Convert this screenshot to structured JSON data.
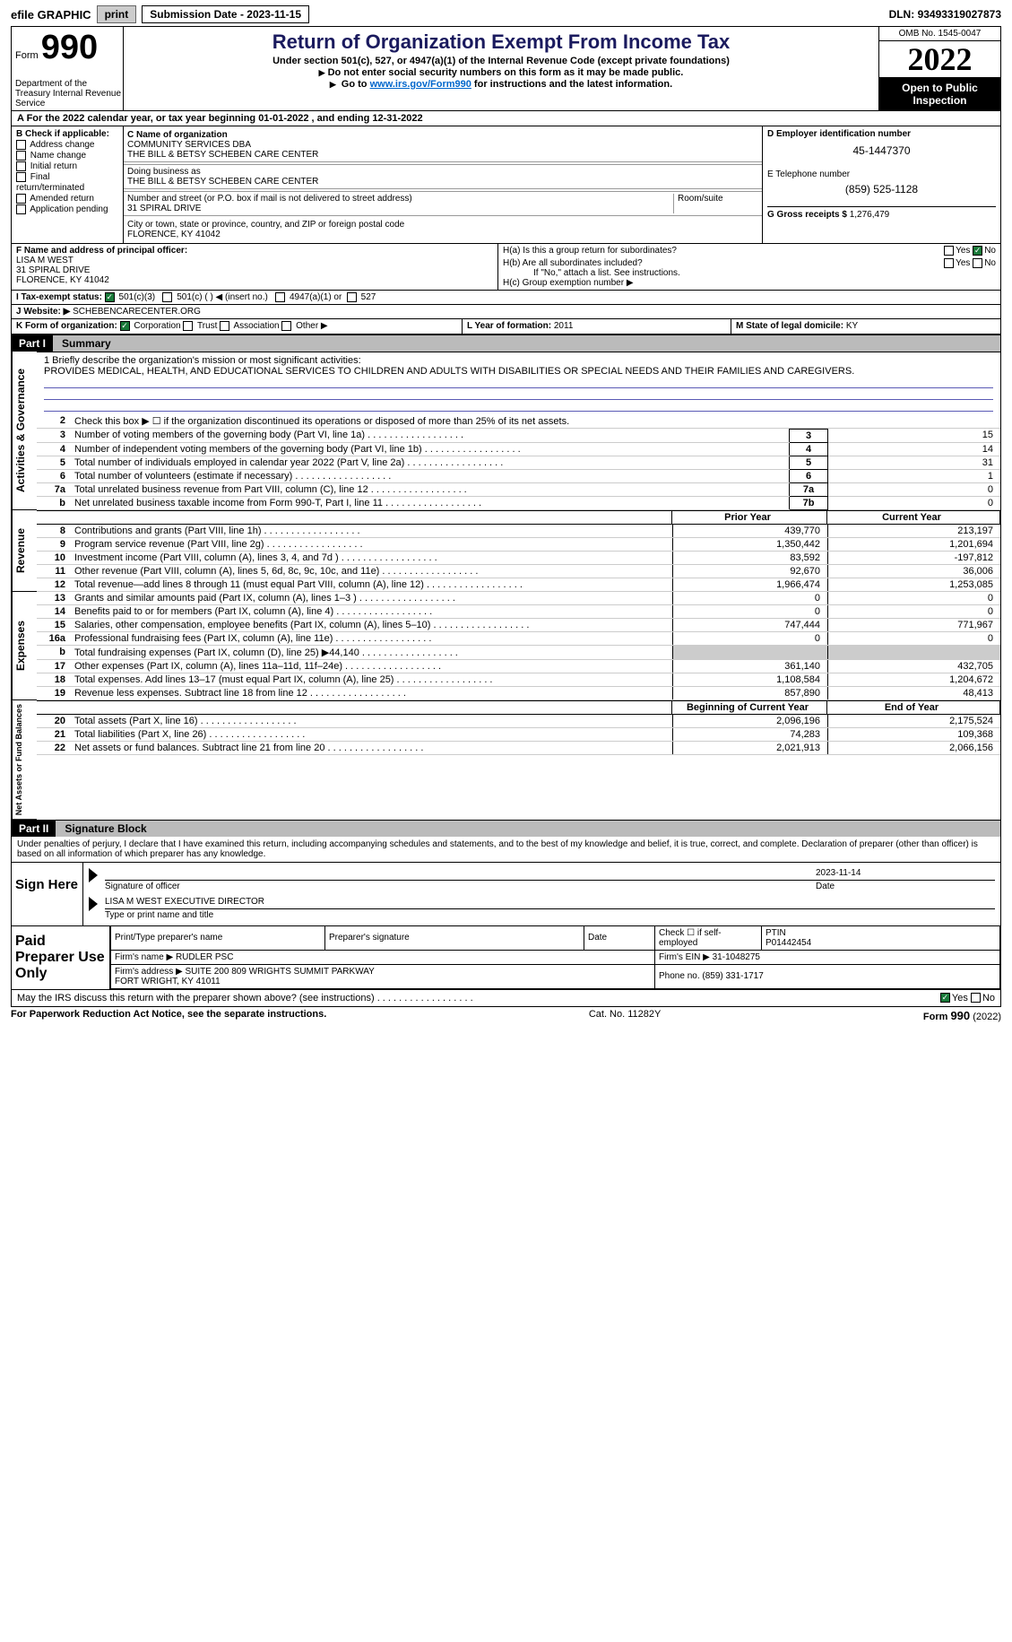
{
  "topbar": {
    "efile": "efile GRAPHIC",
    "print": "print",
    "subdate_label": "Submission Date - ",
    "subdate": "2023-11-15",
    "dln_label": "DLN: ",
    "dln": "93493319027873"
  },
  "header": {
    "form_word": "Form",
    "form_no": "990",
    "dept": "Department of the Treasury Internal Revenue Service",
    "title": "Return of Organization Exempt From Income Tax",
    "sub1": "Under section 501(c), 527, or 4947(a)(1) of the Internal Revenue Code (except private foundations)",
    "sub2": "Do not enter social security numbers on this form as it may be made public.",
    "sub3_a": "Go to ",
    "sub3_link": "www.irs.gov/Form990",
    "sub3_b": " for instructions and the latest information.",
    "omb": "OMB No. 1545-0047",
    "year": "2022",
    "open": "Open to Public Inspection"
  },
  "rowA": {
    "text": "A For the 2022 calendar year, or tax year beginning 01-01-2022    , and ending 12-31-2022"
  },
  "colB": {
    "title": "B Check if applicable:",
    "items": [
      "Address change",
      "Name change",
      "Initial return",
      "Final return/terminated",
      "Amended return",
      "Application pending"
    ]
  },
  "colC": {
    "name_label": "C Name of organization",
    "name1": "COMMUNITY SERVICES DBA",
    "name2": "THE BILL & BETSY SCHEBEN CARE CENTER",
    "dba_label": "Doing business as",
    "dba": "THE BILL & BETSY SCHEBEN CARE CENTER",
    "street_label": "Number and street (or P.O. box if mail is not delivered to street address)",
    "room_label": "Room/suite",
    "street": "31 SPIRAL DRIVE",
    "city_label": "City or town, state or province, country, and ZIP or foreign postal code",
    "city": "FLORENCE, KY  41042"
  },
  "colD": {
    "ein_label": "D Employer identification number",
    "ein": "45-1447370",
    "tel_label": "E Telephone number",
    "tel": "(859) 525-1128",
    "gross_label": "G Gross receipts $ ",
    "gross": "1,276,479"
  },
  "rowF": {
    "label": "F Name and address of principal officer:",
    "name": "LISA M WEST",
    "addr1": "31 SPIRAL DRIVE",
    "addr2": "FLORENCE, KY  41042"
  },
  "rowH": {
    "ha": "H(a)  Is this a group return for subordinates?",
    "hb": "H(b)  Are all subordinates included?",
    "hb_note": "If \"No,\" attach a list. See instructions.",
    "hc": "H(c)  Group exemption number ▶"
  },
  "rowI": {
    "label": "I  Tax-exempt status:",
    "opt1": "501(c)(3)",
    "opt2": "501(c) (  ) ◀ (insert no.)",
    "opt3": "4947(a)(1) or",
    "opt4": "527"
  },
  "rowJ": {
    "label": "J  Website: ▶",
    "value": "SCHEBENCARECENTER.ORG"
  },
  "rowK": {
    "label": "K Form of organization:",
    "opts": [
      "Corporation",
      "Trust",
      "Association",
      "Other ▶"
    ],
    "l_label": "L Year of formation: ",
    "l_val": "2011",
    "m_label": "M State of legal domicile: ",
    "m_val": "KY"
  },
  "partI": {
    "header": "Part I",
    "name": "Summary",
    "briefly_label": "1  Briefly describe the organization's mission or most significant activities:",
    "briefly": "PROVIDES MEDICAL, HEALTH, AND EDUCATIONAL SERVICES TO CHILDREN AND ADULTS WITH DISABILITIES OR SPECIAL NEEDS AND THEIR FAMILIES AND CAREGIVERS.",
    "line2": "Check this box ▶ ☐  if the organization discontinued its operations or disposed of more than 25% of its net assets.",
    "lines_ag": [
      {
        "n": "3",
        "t": "Number of voting members of the governing body (Part VI, line 1a)",
        "box": "3",
        "v": "15"
      },
      {
        "n": "4",
        "t": "Number of independent voting members of the governing body (Part VI, line 1b)",
        "box": "4",
        "v": "14"
      },
      {
        "n": "5",
        "t": "Total number of individuals employed in calendar year 2022 (Part V, line 2a)",
        "box": "5",
        "v": "31"
      },
      {
        "n": "6",
        "t": "Total number of volunteers (estimate if necessary)",
        "box": "6",
        "v": "1"
      },
      {
        "n": "7a",
        "t": "Total unrelated business revenue from Part VIII, column (C), line 12",
        "box": "7a",
        "v": "0"
      },
      {
        "n": "b",
        "t": "Net unrelated business taxable income from Form 990-T, Part I, line 11",
        "box": "7b",
        "v": "0"
      }
    ],
    "col_headers": {
      "prior": "Prior Year",
      "current": "Current Year"
    },
    "revenue": [
      {
        "n": "8",
        "t": "Contributions and grants (Part VIII, line 1h)",
        "p": "439,770",
        "c": "213,197"
      },
      {
        "n": "9",
        "t": "Program service revenue (Part VIII, line 2g)",
        "p": "1,350,442",
        "c": "1,201,694"
      },
      {
        "n": "10",
        "t": "Investment income (Part VIII, column (A), lines 3, 4, and 7d )",
        "p": "83,592",
        "c": "-197,812"
      },
      {
        "n": "11",
        "t": "Other revenue (Part VIII, column (A), lines 5, 6d, 8c, 9c, 10c, and 11e)",
        "p": "92,670",
        "c": "36,006"
      },
      {
        "n": "12",
        "t": "Total revenue—add lines 8 through 11 (must equal Part VIII, column (A), line 12)",
        "p": "1,966,474",
        "c": "1,253,085"
      }
    ],
    "expenses": [
      {
        "n": "13",
        "t": "Grants and similar amounts paid (Part IX, column (A), lines 1–3 )",
        "p": "0",
        "c": "0"
      },
      {
        "n": "14",
        "t": "Benefits paid to or for members (Part IX, column (A), line 4)",
        "p": "0",
        "c": "0"
      },
      {
        "n": "15",
        "t": "Salaries, other compensation, employee benefits (Part IX, column (A), lines 5–10)",
        "p": "747,444",
        "c": "771,967"
      },
      {
        "n": "16a",
        "t": "Professional fundraising fees (Part IX, column (A), line 11e)",
        "p": "0",
        "c": "0"
      },
      {
        "n": "b",
        "t": "Total fundraising expenses (Part IX, column (D), line 25) ▶44,140",
        "p": "",
        "c": "",
        "gray": true
      },
      {
        "n": "17",
        "t": "Other expenses (Part IX, column (A), lines 11a–11d, 11f–24e)",
        "p": "361,140",
        "c": "432,705"
      },
      {
        "n": "18",
        "t": "Total expenses. Add lines 13–17 (must equal Part IX, column (A), line 25)",
        "p": "1,108,584",
        "c": "1,204,672"
      },
      {
        "n": "19",
        "t": "Revenue less expenses. Subtract line 18 from line 12",
        "p": "857,890",
        "c": "48,413"
      }
    ],
    "net_headers": {
      "begin": "Beginning of Current Year",
      "end": "End of Year"
    },
    "net": [
      {
        "n": "20",
        "t": "Total assets (Part X, line 16)",
        "p": "2,096,196",
        "c": "2,175,524"
      },
      {
        "n": "21",
        "t": "Total liabilities (Part X, line 26)",
        "p": "74,283",
        "c": "109,368"
      },
      {
        "n": "22",
        "t": "Net assets or fund balances. Subtract line 21 from line 20",
        "p": "2,021,913",
        "c": "2,066,156"
      }
    ],
    "sides": {
      "ag": "Activities & Governance",
      "rev": "Revenue",
      "exp": "Expenses",
      "net": "Net Assets or Fund Balances"
    }
  },
  "partII": {
    "header": "Part II",
    "name": "Signature Block",
    "penalties": "Under penalties of perjury, I declare that I have examined this return, including accompanying schedules and statements, and to the best of my knowledge and belief, it is true, correct, and complete. Declaration of preparer (other than officer) is based on all information of which preparer has any knowledge.",
    "sign_here": "Sign Here",
    "sig_officer": "Signature of officer",
    "sig_date_val": "2023-11-14",
    "sig_date": "Date",
    "sig_name": "LISA M WEST  EXECUTIVE DIRECTOR",
    "sig_type": "Type or print name and title",
    "paid": "Paid Preparer Use Only",
    "paid_cols": [
      "Print/Type preparer's name",
      "Preparer's signature",
      "Date"
    ],
    "check_self": "Check ☐ if self-employed",
    "ptin_label": "PTIN",
    "ptin": "P01442454",
    "firm_name_label": "Firm's name    ▶ ",
    "firm_name": "RUDLER PSC",
    "firm_ein_label": "Firm's EIN ▶ ",
    "firm_ein": "31-1048275",
    "firm_addr_label": "Firm's address ▶ ",
    "firm_addr": "SUITE 200 809 WRIGHTS SUMMIT PARKWAY\nFORT WRIGHT, KY  41011",
    "phone_label": "Phone no. ",
    "phone": "(859) 331-1717",
    "may_irs": "May the IRS discuss this return with the preparer shown above? (see instructions)"
  },
  "footer": {
    "left": "For Paperwork Reduction Act Notice, see the separate instructions.",
    "mid": "Cat. No. 11282Y",
    "right": "Form 990 (2022)"
  }
}
